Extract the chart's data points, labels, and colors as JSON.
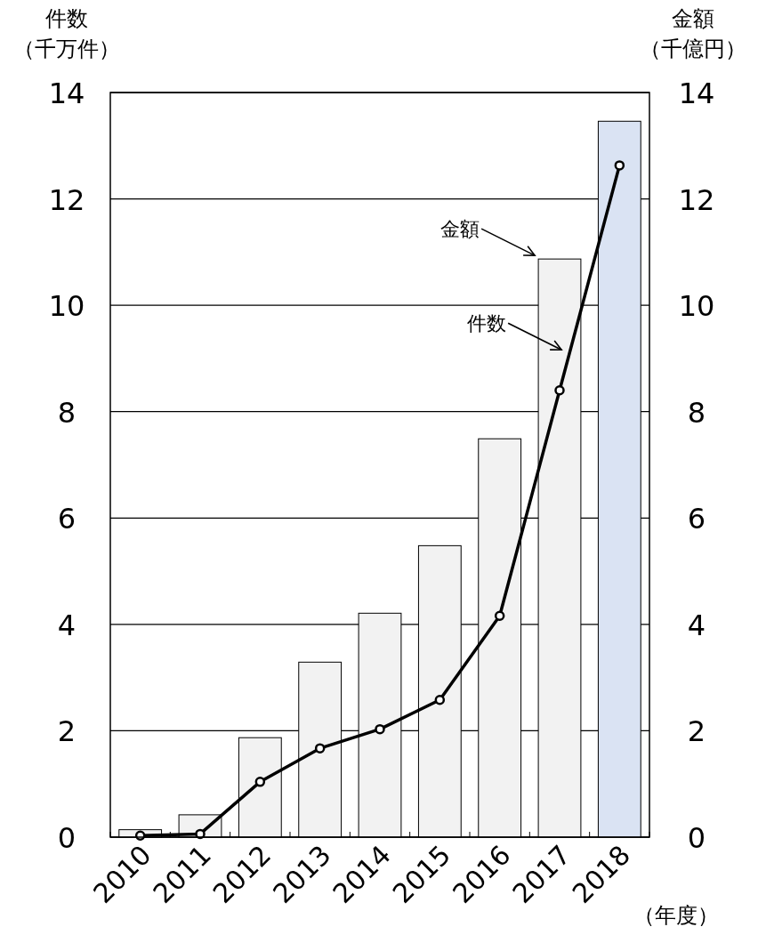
{
  "chart_data": {
    "type": "bar",
    "xlabel": "（年度）",
    "ylabel": "件数（千万件）",
    "y2label": "金額（千億円）",
    "categories": [
      "2010",
      "2011",
      "2012",
      "2013",
      "2014",
      "2015",
      "2016",
      "2017",
      "2018"
    ],
    "series": [
      {
        "name": "金額",
        "colors": [
          "#f2f2f2",
          "#f2f2f2",
          "#f2f2f2",
          "#f2f2f2",
          "#f2f2f2",
          "#f2f2f2",
          "#f2f2f2",
          "#f2f2f2",
          "#dae3f3"
        ],
        "values": [
          0.14,
          0.42,
          1.87,
          3.29,
          4.21,
          5.48,
          7.49,
          10.87,
          13.46
        ]
      },
      {
        "name": "件数",
        "type": "line",
        "color": "#000000",
        "marker": "circle",
        "values": [
          0.03,
          0.06,
          1.04,
          1.67,
          2.03,
          2.58,
          4.16,
          8.4,
          12.63
        ]
      }
    ],
    "ylim": [
      0,
      14
    ],
    "yticks": [
      0,
      2,
      4,
      6,
      8,
      10,
      12,
      14
    ],
    "y2lim": [
      0,
      14
    ],
    "y2ticks": [
      0,
      2,
      4,
      6,
      8,
      10,
      12,
      14
    ],
    "grid": "y",
    "legend": "top right"
  }
}
